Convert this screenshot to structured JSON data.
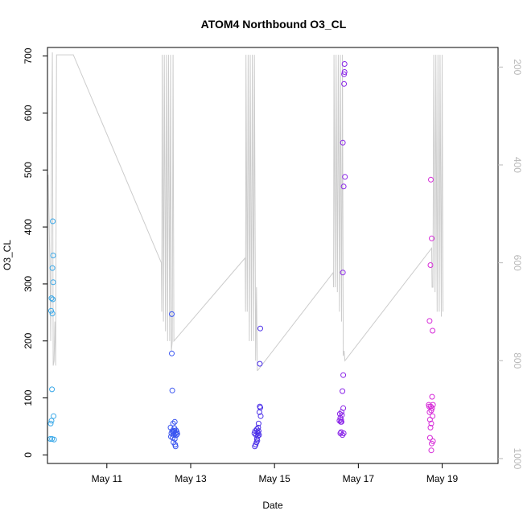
{
  "chart_data": {
    "type": "scatter",
    "title": "ATOM4 Northbound O3_CL",
    "xlabel": "Date",
    "ylabel": "O3_CL",
    "x_ticks": [
      "May 11",
      "May 13",
      "May 15",
      "May 17",
      "May 19"
    ],
    "y_ticks": [
      "0",
      "100",
      "200",
      "300",
      "400",
      "500",
      "600",
      "700"
    ],
    "y2_ticks": [
      "200",
      "400",
      "600",
      "800",
      "1000"
    ],
    "xlim": [
      "May 9 14:00",
      "May 20 08:00"
    ],
    "ylim": [
      -15,
      715
    ],
    "y2lim": [
      1010,
      160
    ],
    "y2_reversed": true,
    "grid": false,
    "legend": "none",
    "colors": {
      "axis": "#000000",
      "right_axis": "#b8b8b8",
      "line": "#cccccc",
      "day1": "#3aa8e8",
      "day2": "#3a55f0",
      "day3": "#4a2ee8",
      "day4": "#8a24e8",
      "day5": "#d62ad8"
    },
    "series": [
      {
        "color": "#3aa8e8",
        "day": 9,
        "points": [
          [
            0.65,
            28
          ],
          [
            0.66,
            55
          ],
          [
            0.67,
            253
          ],
          [
            0.68,
            60
          ],
          [
            0.68,
            275
          ],
          [
            0.69,
            115
          ],
          [
            0.69,
            28
          ],
          [
            0.7,
            328
          ],
          [
            0.7,
            248
          ],
          [
            0.71,
            273
          ],
          [
            0.71,
            410
          ],
          [
            0.72,
            350
          ],
          [
            0.72,
            303
          ],
          [
            0.73,
            68
          ],
          [
            0.74,
            27
          ]
        ]
      },
      {
        "color": "#3a55f0",
        "day": 12,
        "points": [
          [
            0.52,
            48
          ],
          [
            0.53,
            32
          ],
          [
            0.54,
            38
          ],
          [
            0.55,
            247
          ],
          [
            0.55,
            178
          ],
          [
            0.56,
            113
          ],
          [
            0.56,
            42
          ],
          [
            0.57,
            30
          ],
          [
            0.58,
            40
          ],
          [
            0.58,
            55
          ],
          [
            0.59,
            22
          ],
          [
            0.6,
            35
          ],
          [
            0.61,
            47
          ],
          [
            0.61,
            42
          ],
          [
            0.62,
            28
          ],
          [
            0.62,
            58
          ],
          [
            0.63,
            18
          ],
          [
            0.64,
            15
          ],
          [
            0.64,
            38
          ],
          [
            0.65,
            43
          ],
          [
            0.66,
            35
          ],
          [
            0.67,
            40
          ],
          [
            0.68,
            37
          ],
          [
            0.6,
            42
          ]
        ]
      },
      {
        "color": "#4a2ee8",
        "day": 14,
        "points": [
          [
            0.52,
            38
          ],
          [
            0.53,
            15
          ],
          [
            0.54,
            42
          ],
          [
            0.55,
            18
          ],
          [
            0.56,
            35
          ],
          [
            0.57,
            22
          ],
          [
            0.58,
            45
          ],
          [
            0.58,
            28
          ],
          [
            0.59,
            40
          ],
          [
            0.6,
            33
          ],
          [
            0.61,
            48
          ],
          [
            0.61,
            38
          ],
          [
            0.62,
            55
          ],
          [
            0.63,
            35
          ],
          [
            0.64,
            75
          ],
          [
            0.65,
            160
          ],
          [
            0.65,
            85
          ],
          [
            0.66,
            83
          ],
          [
            0.66,
            222
          ],
          [
            0.67,
            68
          ],
          [
            0.62,
            42
          ],
          [
            0.59,
            25
          ]
        ]
      },
      {
        "color": "#8a24e8",
        "day": 16,
        "points": [
          [
            0.55,
            60
          ],
          [
            0.56,
            72
          ],
          [
            0.57,
            38
          ],
          [
            0.57,
            65
          ],
          [
            0.58,
            58
          ],
          [
            0.59,
            62
          ],
          [
            0.59,
            40
          ],
          [
            0.6,
            75
          ],
          [
            0.61,
            70
          ],
          [
            0.62,
            112
          ],
          [
            0.62,
            35
          ],
          [
            0.63,
            548
          ],
          [
            0.63,
            320
          ],
          [
            0.64,
            140
          ],
          [
            0.64,
            82
          ],
          [
            0.65,
            471
          ],
          [
            0.65,
            38
          ],
          [
            0.66,
            651
          ],
          [
            0.66,
            668
          ],
          [
            0.67,
            672
          ],
          [
            0.67,
            686
          ],
          [
            0.68,
            488
          ],
          [
            0.6,
            58
          ]
        ]
      },
      {
        "color": "#d62ad8",
        "day": 18,
        "points": [
          [
            0.68,
            88
          ],
          [
            0.69,
            85
          ],
          [
            0.7,
            235
          ],
          [
            0.7,
            75
          ],
          [
            0.71,
            62
          ],
          [
            0.71,
            30
          ],
          [
            0.72,
            48
          ],
          [
            0.72,
            333
          ],
          [
            0.73,
            483
          ],
          [
            0.73,
            85
          ],
          [
            0.74,
            8
          ],
          [
            0.74,
            78
          ],
          [
            0.75,
            380
          ],
          [
            0.75,
            20
          ],
          [
            0.76,
            102
          ],
          [
            0.76,
            82
          ],
          [
            0.77,
            218
          ],
          [
            0.77,
            68
          ],
          [
            0.78,
            88
          ],
          [
            0.78,
            24
          ],
          [
            0.74,
            55
          ]
        ]
      }
    ],
    "line_series": [
      {
        "axis": "right",
        "points": [
          [
            9.6,
            420
          ],
          [
            9.64,
            600
          ],
          [
            9.66,
            760
          ],
          [
            9.68,
            380
          ],
          [
            9.7,
            170
          ],
          [
            9.72,
            810
          ],
          [
            9.74,
            800
          ],
          [
            9.76,
            720
          ],
          [
            9.78,
            810
          ],
          [
            9.8,
            175
          ],
          [
            9.82,
            175
          ],
          [
            10.2,
            175
          ],
          [
            12.3,
            600
          ],
          [
            12.31,
            700
          ],
          [
            12.32,
            175
          ],
          [
            12.35,
            720
          ],
          [
            12.37,
            175
          ],
          [
            12.4,
            740
          ],
          [
            12.42,
            175
          ],
          [
            12.45,
            760
          ],
          [
            12.47,
            175
          ],
          [
            12.5,
            760
          ],
          [
            12.52,
            175
          ],
          [
            12.54,
            780
          ],
          [
            12.56,
            760
          ],
          [
            12.58,
            175
          ],
          [
            12.6,
            760
          ],
          [
            14.3,
            590
          ],
          [
            14.31,
            700
          ],
          [
            14.32,
            175
          ],
          [
            14.35,
            700
          ],
          [
            14.37,
            175
          ],
          [
            14.4,
            760
          ],
          [
            14.42,
            175
          ],
          [
            14.45,
            760
          ],
          [
            14.47,
            175
          ],
          [
            14.5,
            760
          ],
          [
            14.52,
            175
          ],
          [
            14.55,
            800
          ],
          [
            14.57,
            650
          ],
          [
            14.59,
            820
          ],
          [
            14.6,
            820
          ],
          [
            16.4,
            620
          ],
          [
            16.41,
            650
          ],
          [
            16.42,
            175
          ],
          [
            16.45,
            650
          ],
          [
            16.47,
            175
          ],
          [
            16.5,
            660
          ],
          [
            16.52,
            175
          ],
          [
            16.55,
            700
          ],
          [
            16.57,
            175
          ],
          [
            16.6,
            720
          ],
          [
            16.62,
            175
          ],
          [
            16.64,
            790
          ],
          [
            16.66,
            780
          ],
          [
            16.68,
            800
          ],
          [
            18.75,
            570
          ],
          [
            18.76,
            650
          ],
          [
            18.78,
            650
          ],
          [
            18.8,
            175
          ],
          [
            18.83,
            660
          ],
          [
            18.85,
            175
          ],
          [
            18.88,
            700
          ],
          [
            18.9,
            175
          ],
          [
            18.93,
            700
          ],
          [
            18.95,
            175
          ],
          [
            18.98,
            710
          ],
          [
            19.0,
            175
          ],
          [
            19.02,
            700
          ]
        ]
      }
    ]
  }
}
